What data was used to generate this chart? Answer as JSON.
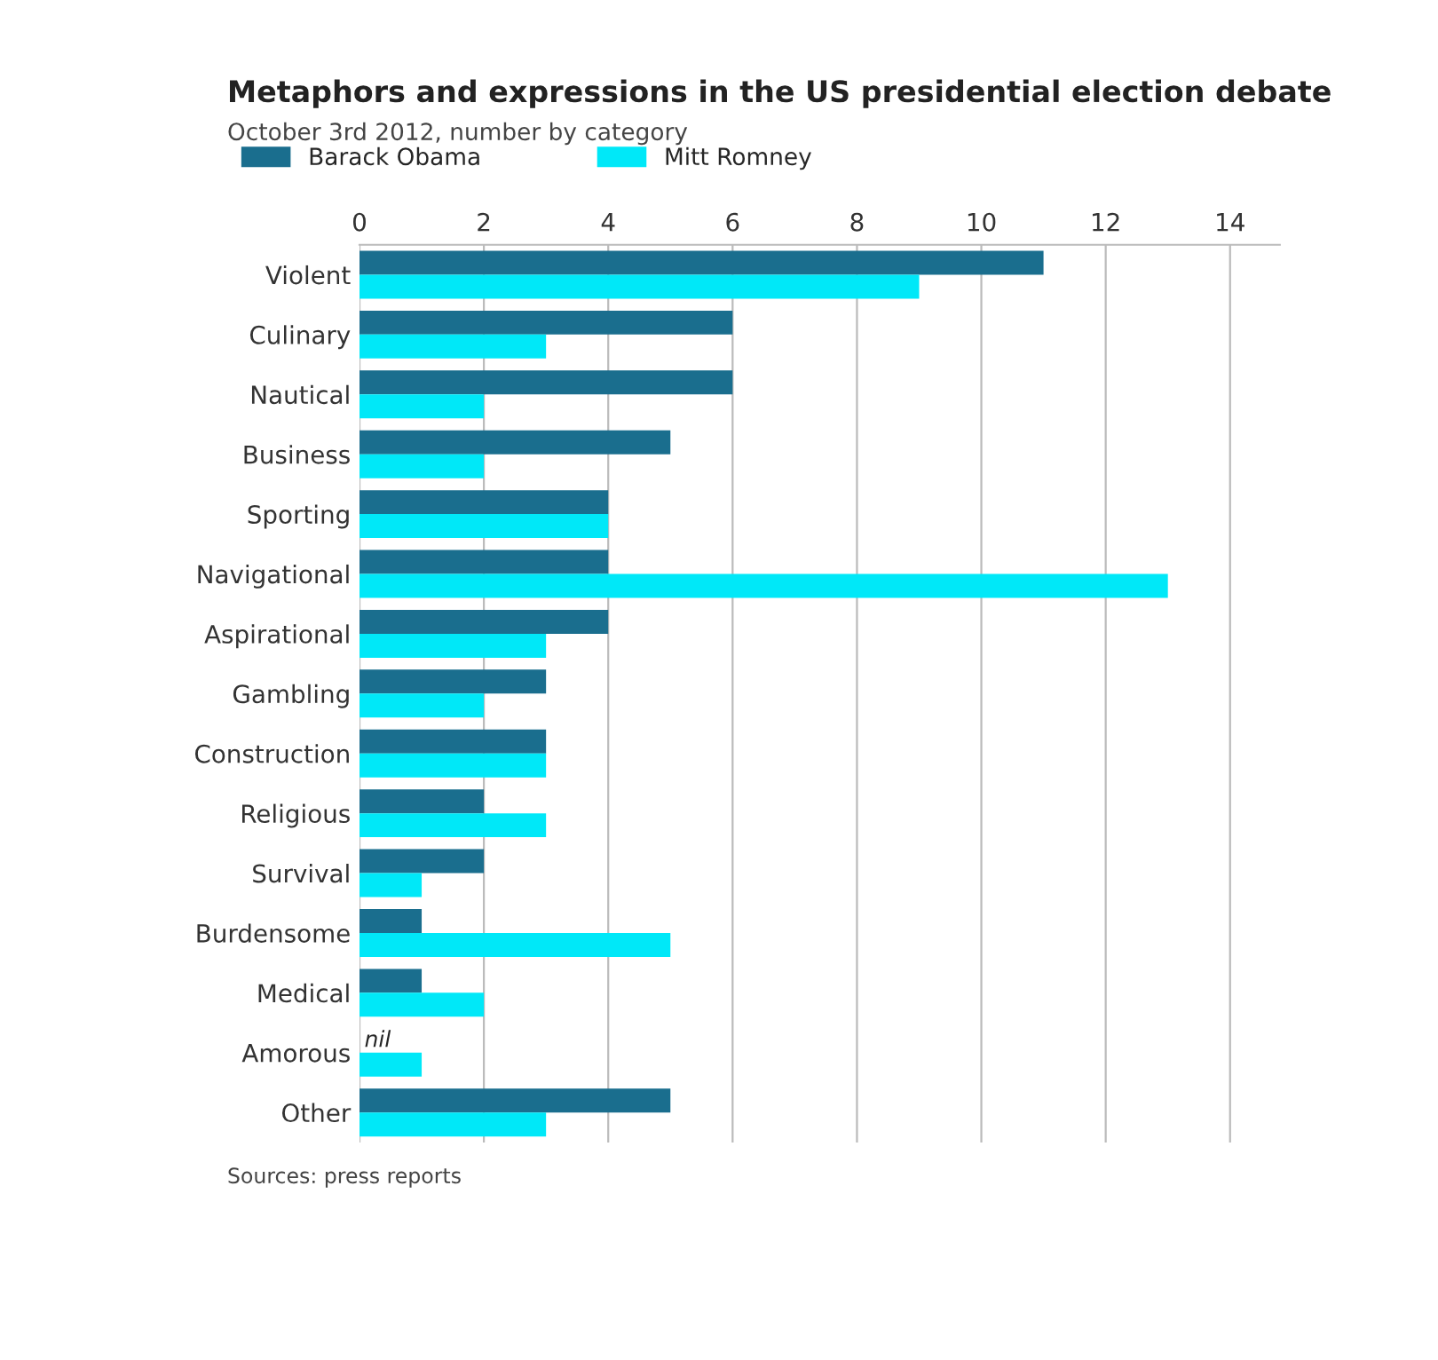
{
  "chart_data": {
    "type": "bar",
    "orientation": "horizontal",
    "title": "Metaphors and expressions in the US presidential election debate",
    "subtitle": "October 3rd 2012, number by category",
    "categories": [
      "Violent",
      "Culinary",
      "Nautical",
      "Business",
      "Sporting",
      "Navigational",
      "Aspirational",
      "Gambling",
      "Construction",
      "Religious",
      "Survival",
      "Burdensome",
      "Medical",
      "Amorous",
      "Other"
    ],
    "series": [
      {
        "name": "Barack Obama",
        "color": "#1a6e8e",
        "values": [
          11,
          6,
          6,
          5,
          4,
          4,
          4,
          3,
          3,
          2,
          2,
          1,
          1,
          0,
          5
        ]
      },
      {
        "name": "Mitt Romney",
        "color": "#00e8f8",
        "values": [
          9,
          3,
          2,
          2,
          4,
          13,
          3,
          2,
          3,
          3,
          1,
          5,
          2,
          1,
          3
        ]
      }
    ],
    "xlim": [
      0,
      14.8
    ],
    "xticks": [
      0,
      2,
      4,
      6,
      8,
      10,
      12,
      14
    ],
    "grid": "x",
    "legend": "top left",
    "annotations": [
      {
        "text": "nil",
        "x": 0,
        "y": "Amorous"
      },
      "Sources: press reports"
    ]
  }
}
